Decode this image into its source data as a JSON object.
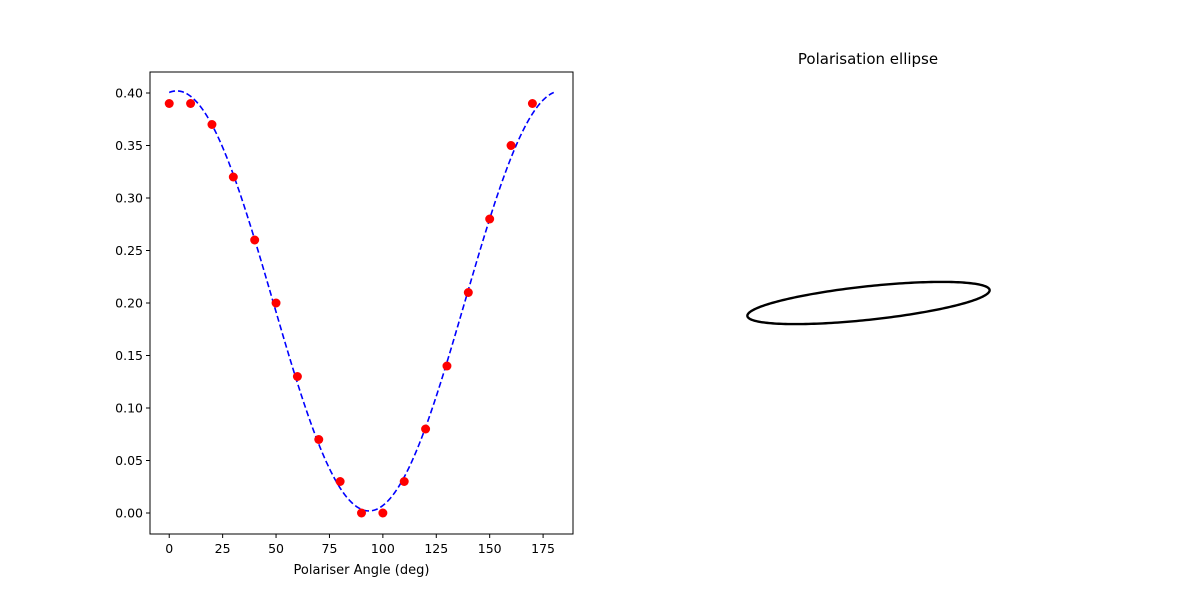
{
  "chart_data": [
    {
      "type": "scatter",
      "title": "",
      "xlabel": "Polariser Angle (deg)",
      "ylabel": "",
      "xlim": [
        -9,
        189
      ],
      "ylim": [
        -0.02,
        0.42
      ],
      "xticks": [
        0,
        25,
        50,
        75,
        100,
        125,
        150,
        175
      ],
      "yticks": [
        0.0,
        0.05,
        0.1,
        0.15,
        0.2,
        0.25,
        0.3,
        0.35,
        0.4
      ],
      "ytick_labels": [
        "0.00",
        "0.05",
        "0.10",
        "0.15",
        "0.20",
        "0.25",
        "0.30",
        "0.35",
        "0.40"
      ],
      "grid": false,
      "series": [
        {
          "kind": "points",
          "color": "#ff0000",
          "x": [
            0,
            10,
            20,
            30,
            40,
            50,
            60,
            70,
            80,
            90,
            100,
            110,
            120,
            130,
            140,
            150,
            160,
            170
          ],
          "y": [
            0.39,
            0.39,
            0.37,
            0.32,
            0.26,
            0.2,
            0.13,
            0.07,
            0.03,
            0.0,
            0.0,
            0.03,
            0.08,
            0.14,
            0.21,
            0.28,
            0.35,
            0.39
          ]
        },
        {
          "kind": "fit-curve",
          "style": "dashed",
          "color": "#0000ff",
          "model": "offset + amplitude * cos^2(angle - phase)",
          "amplitude": 0.4,
          "phase_deg": 3.5,
          "offset": 0.002,
          "x_range": [
            0,
            180
          ]
        }
      ]
    },
    {
      "type": "line",
      "title": "Polarisation ellipse",
      "axes_visible": false,
      "xlim": [
        -1.1,
        1.1
      ],
      "ylim": [
        -1.1,
        1.1
      ],
      "series": [
        {
          "kind": "ellipse",
          "color": "#000000",
          "semi_major": 1.0,
          "semi_minor": 0.08,
          "orientation_deg": 3.5
        }
      ]
    }
  ]
}
